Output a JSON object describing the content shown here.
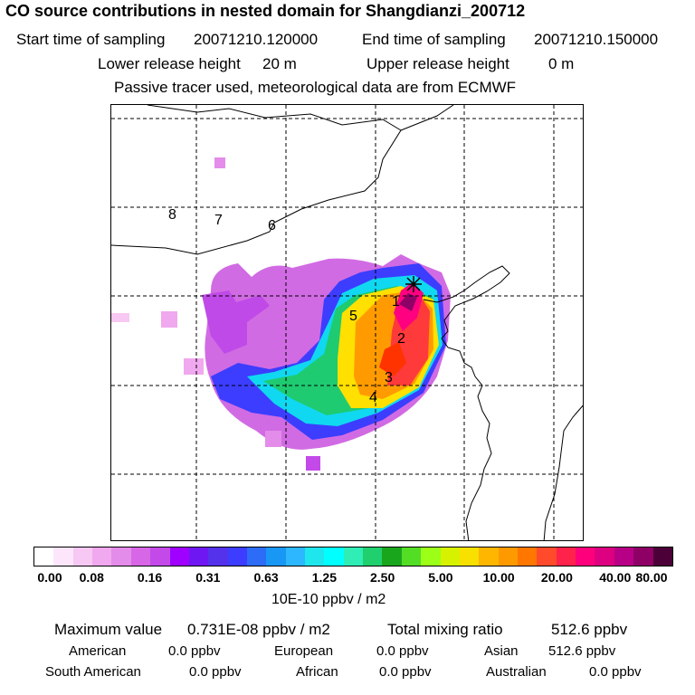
{
  "title": "CO  source contributions in nested domain for Shangdianzi_200712",
  "sampling": {
    "start_label": "Start time of sampling",
    "start_value": "20071210.120000",
    "end_label": "End time of sampling",
    "end_value": "20071210.150000"
  },
  "release": {
    "lower_label": "Lower release height",
    "lower_value": "20 m",
    "upper_label": "Upper release height",
    "upper_value": "0 m"
  },
  "tracer_note": "Passive tracer used, meteorological data are from ECMWF",
  "map": {
    "region_labels": [
      "1",
      "2",
      "3",
      "4",
      "5",
      "6",
      "7",
      "8"
    ],
    "station_marker": "asterisk-icon"
  },
  "colorbar": {
    "colors": [
      "#ffffff",
      "#fde6fb",
      "#f7c8f3",
      "#f0a8ee",
      "#e48ce9",
      "#d767e6",
      "#c34ae8",
      "#a000ff",
      "#6f17f3",
      "#5431ea",
      "#3c3dff",
      "#2d6cf7",
      "#1897f5",
      "#2cb7ff",
      "#1ee6ec",
      "#00ffff",
      "#2fedb5",
      "#20d06e",
      "#1aa61c",
      "#54dd25",
      "#9cff17",
      "#d6f200",
      "#f8e000",
      "#ffb600",
      "#ff9900",
      "#ff7700",
      "#ff4b2b",
      "#ff224a",
      "#ff007d",
      "#dd0080",
      "#b70086",
      "#8f0067",
      "#4c0038"
    ],
    "ticks": [
      "0.00",
      "0.08",
      "0.16",
      "0.31",
      "0.63",
      "1.25",
      "2.50",
      "5.00",
      "10.00",
      "20.00",
      "40.00",
      "80.00"
    ],
    "unit": "10E-10 ppbv / m2"
  },
  "stats": {
    "max_label": "Maximum value",
    "max_value": "0.731E-08 ppbv / m2",
    "total_label": "Total mixing ratio",
    "total_value": "512.6 ppbv",
    "american_label": "American",
    "american_value": "0.0 ppbv",
    "european_label": "European",
    "european_value": "0.0 ppbv",
    "asian_label": "Asian",
    "asian_value": "512.6 ppbv",
    "south_american_label": "South American",
    "south_american_value": "0.0 ppbv",
    "african_label": "African",
    "african_value": "0.0 ppbv",
    "australian_label": "Australian",
    "australian_value": "0.0 ppbv"
  }
}
